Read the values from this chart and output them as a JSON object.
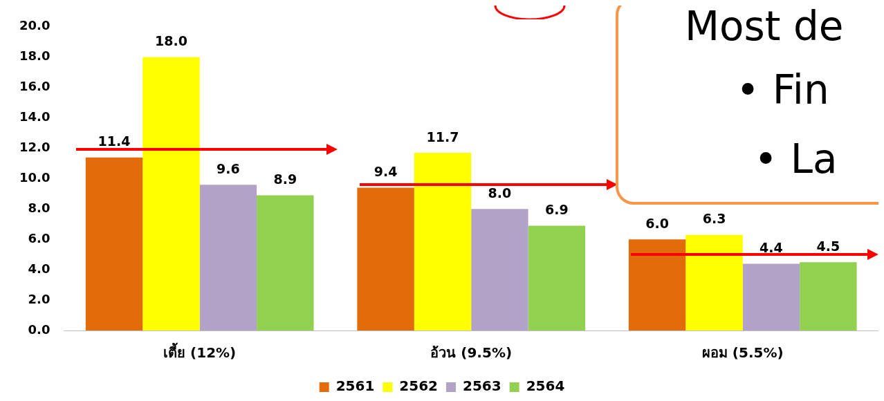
{
  "chart_data": {
    "type": "bar",
    "categories": [
      "เตี้ย (12%)",
      "อ้วน (9.5%)",
      "ผอม (5.5%)"
    ],
    "series": [
      {
        "name": "2561",
        "color": "#e36c0a",
        "values": [
          11.4,
          9.4,
          6.0
        ],
        "value_labels": [
          "11.4",
          "9.4",
          "6.0"
        ]
      },
      {
        "name": "2562",
        "color": "#ffff00",
        "values": [
          18.0,
          11.7,
          6.3
        ],
        "value_labels": [
          "18.0",
          "11.7",
          "6.3"
        ]
      },
      {
        "name": "2563",
        "color": "#b3a2c7",
        "values": [
          9.6,
          8.0,
          4.4
        ],
        "value_labels": [
          "9.6",
          "8.0",
          "4.4"
        ]
      },
      {
        "name": "2564",
        "color": "#92d050",
        "values": [
          8.9,
          6.9,
          4.5
        ],
        "value_labels": [
          "8.9",
          "6.9",
          "4.5"
        ]
      }
    ],
    "ylim": [
      0,
      20
    ],
    "yticks": [
      {
        "value": 0,
        "label": "0.0"
      },
      {
        "value": 2,
        "label": "2.0"
      },
      {
        "value": 4,
        "label": "4.0"
      },
      {
        "value": 6,
        "label": "6.0"
      },
      {
        "value": 8,
        "label": "8.0"
      },
      {
        "value": 10,
        "label": "10.0"
      },
      {
        "value": 12,
        "label": "12.0"
      },
      {
        "value": 14,
        "label": "14.0"
      },
      {
        "value": 16,
        "label": "16.0"
      },
      {
        "value": 18,
        "label": "18.0"
      },
      {
        "value": 20,
        "label": "20.0"
      }
    ],
    "grid": false,
    "legend": "bottom",
    "annotations": [
      "Most de",
      "• Fin",
      "• La"
    ]
  }
}
